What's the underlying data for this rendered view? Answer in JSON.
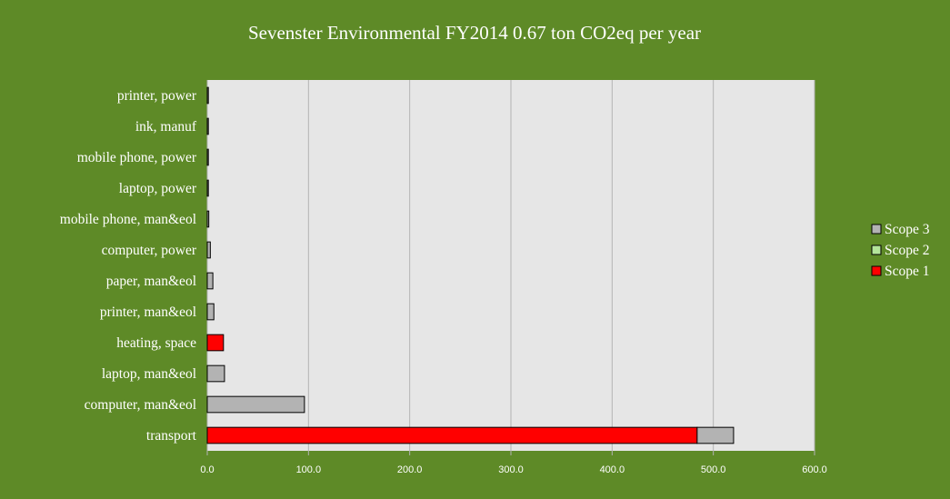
{
  "chart_data": {
    "type": "bar",
    "orientation": "horizontal",
    "stacked": true,
    "title": "Sevenster Environmental FY2014 0.67 ton CO2eq per year",
    "xlabel": "",
    "ylabel": "",
    "xlim": [
      0,
      600
    ],
    "x_ticks": [
      "0.0",
      "100.0",
      "200.0",
      "300.0",
      "400.0",
      "500.0",
      "600.0"
    ],
    "grid": true,
    "legend_position": "right",
    "categories": [
      "printer, power",
      "ink, manuf",
      "mobile phone, power",
      "laptop, power",
      "mobile phone, man&eol",
      "computer, power",
      "paper, man&eol",
      "printer, man&eol",
      "heating, space",
      "laptop, man&eol",
      "computer, man&eol",
      "transport"
    ],
    "series": [
      {
        "name": "Scope 1",
        "color": "#ff0000",
        "values": [
          0,
          0,
          0,
          0,
          0,
          0,
          0,
          0,
          16,
          0,
          0,
          484
        ]
      },
      {
        "name": "Scope 2",
        "color": "#b3e59a",
        "values": [
          0,
          0,
          0,
          0,
          0,
          0,
          0,
          0,
          0,
          0,
          0,
          0
        ]
      },
      {
        "name": "Scope 3",
        "color": "#b3b3b3",
        "values": [
          0.5,
          0.5,
          0.5,
          0.5,
          1.5,
          3,
          5.5,
          6.5,
          0,
          17,
          96,
          36
        ]
      }
    ],
    "legend": [
      "Scope 3",
      "Scope 2",
      "Scope 1"
    ],
    "plot_background": "#e6e6e6",
    "page_background": "#5e8a27"
  }
}
